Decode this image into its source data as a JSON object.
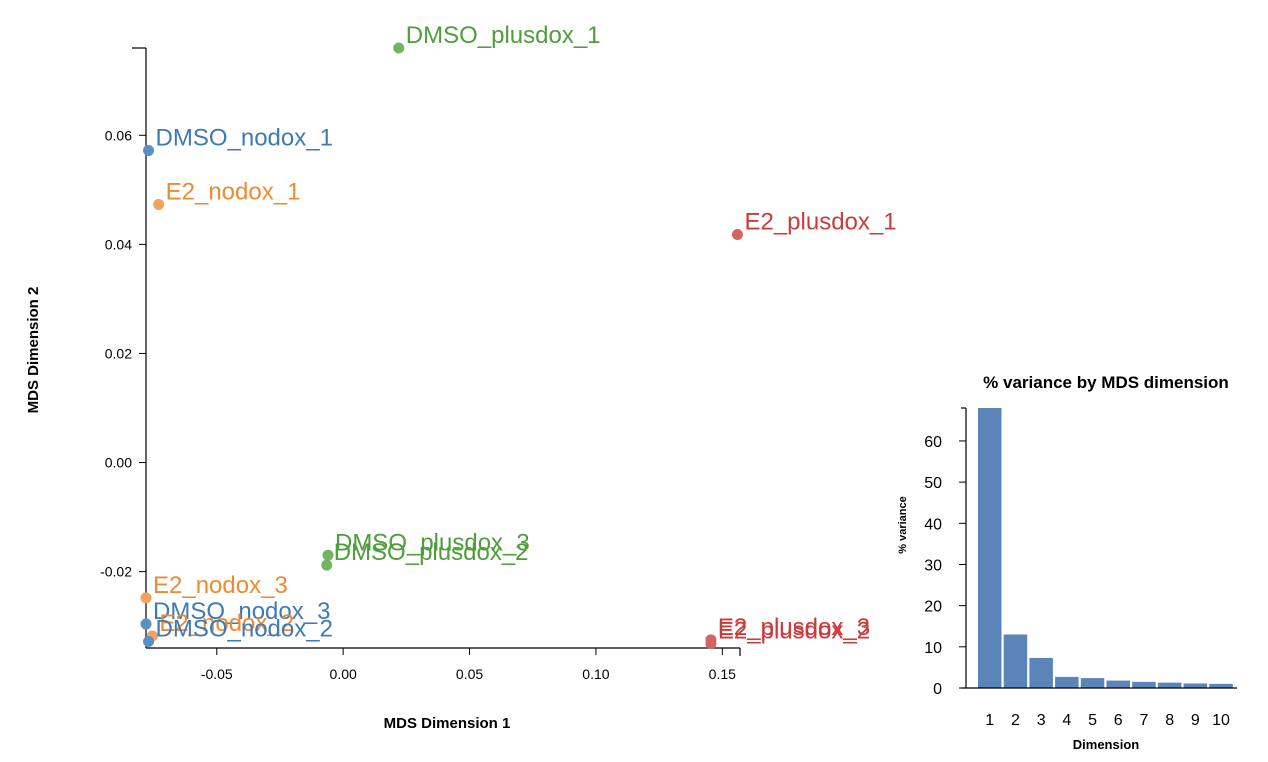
{
  "chart_data": [
    {
      "type": "scatter",
      "xlabel": "MDS Dimension 1",
      "ylabel": "MDS Dimension 2",
      "xlim": [
        -0.078,
        0.157
      ],
      "ylim": [
        -0.034,
        0.076
      ],
      "xticks": [
        "-0.05",
        "0.00",
        "0.05",
        "0.10",
        "0.15"
      ],
      "xtick_values": [
        -0.05,
        0.0,
        0.05,
        0.1,
        0.15
      ],
      "yticks": [
        "-0.02",
        "0.00",
        "0.02",
        "0.04",
        "0.06"
      ],
      "ytick_values": [
        -0.02,
        0.0,
        0.02,
        0.04,
        0.06
      ],
      "groups": [
        {
          "color": "#3f7ab5",
          "dot": "#5a8fc4"
        },
        {
          "color": "#ef8a32",
          "dot": "#f2a25d"
        },
        {
          "color": "#4e9e3a",
          "dot": "#72b561"
        },
        {
          "color": "#cc3b3b",
          "dot": "#d46464"
        }
      ],
      "points": [
        {
          "label": "DMSO_plusdox_1",
          "x": 0.022,
          "y": 0.076,
          "group": 2
        },
        {
          "label": "DMSO_nodox_1",
          "x": -0.077,
          "y": 0.0572,
          "group": 0
        },
        {
          "label": "E2_nodox_1",
          "x": -0.073,
          "y": 0.0473,
          "group": 1
        },
        {
          "label": "E2_plusdox_1",
          "x": 0.156,
          "y": 0.0418,
          "group": 3
        },
        {
          "label": "DMSO_plusdox_3",
          "x": -0.006,
          "y": -0.017,
          "group": 2
        },
        {
          "label": "DMSO_plusdox_2",
          "x": -0.0065,
          "y": -0.0188,
          "group": 2
        },
        {
          "label": "E2_nodox_3",
          "x": -0.078,
          "y": -0.0248,
          "group": 1
        },
        {
          "label": "DMSO_nodox_3",
          "x": -0.078,
          "y": -0.0296,
          "group": 0
        },
        {
          "label": "E2_nodox_2",
          "x": -0.0755,
          "y": -0.0318,
          "group": 1
        },
        {
          "label": "DMSO_nodox_2",
          "x": -0.077,
          "y": -0.0328,
          "group": 0
        },
        {
          "label": "E2_plusdox_3",
          "x": 0.1455,
          "y": -0.0325,
          "group": 3
        },
        {
          "label": "E2_plusdox_2",
          "x": 0.1455,
          "y": -0.0332,
          "group": 3
        }
      ]
    },
    {
      "type": "bar",
      "title": "% variance by MDS dimension",
      "xlabel": "Dimension",
      "ylabel": "% variance",
      "color": "#5b84b8",
      "categories": [
        "1",
        "2",
        "3",
        "4",
        "5",
        "6",
        "7",
        "8",
        "9",
        "10"
      ],
      "values": [
        68,
        13,
        7.3,
        2.7,
        2.4,
        1.8,
        1.5,
        1.3,
        1.1,
        1.0
      ],
      "ylim": [
        0,
        68
      ],
      "yticks": [
        "0",
        "10",
        "20",
        "30",
        "40",
        "50",
        "60"
      ],
      "ytick_values": [
        0,
        10,
        20,
        30,
        40,
        50,
        60
      ]
    }
  ]
}
